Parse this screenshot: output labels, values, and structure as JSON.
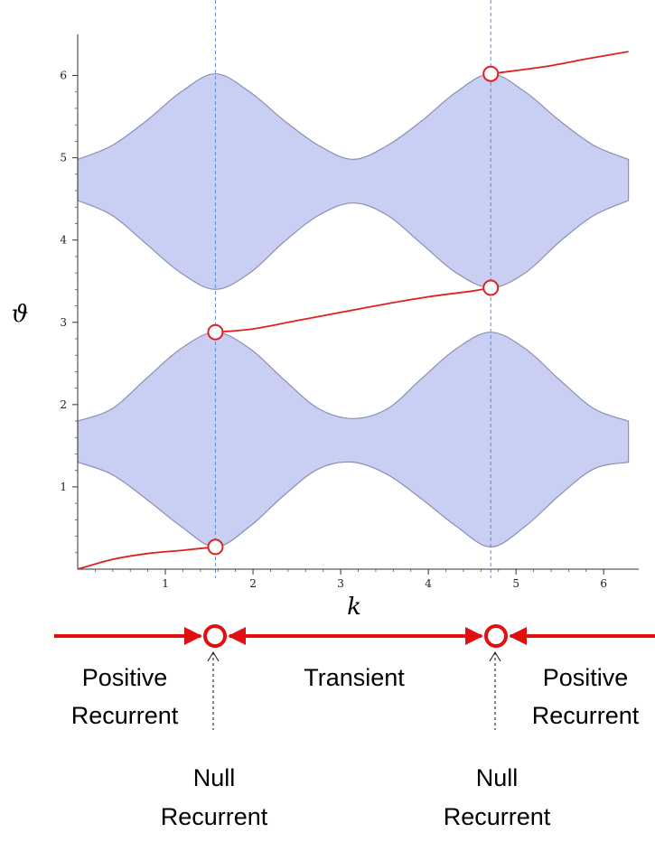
{
  "chart_data": {
    "type": "area",
    "xlabel": "k",
    "ylabel": "ϑ",
    "xlim": [
      0,
      6.4
    ],
    "ylim": [
      0,
      6.5
    ],
    "xticks": [
      "1",
      "2",
      "3",
      "4",
      "5",
      "6"
    ],
    "yticks": [
      "1",
      "2",
      "3",
      "4",
      "5",
      "6"
    ],
    "grid": false,
    "band_color": "#c9cff2",
    "band_edge_color": "#8a8fb5",
    "curve_color": "#e02020",
    "bands": [
      {
        "name": "",
        "x": [
          0,
          0.393,
          0.785,
          1.178,
          1.571,
          1.963,
          2.356,
          2.749,
          3.142,
          3.534,
          3.927,
          4.32,
          4.712,
          5.105,
          5.498,
          5.89,
          6.283
        ],
        "lower": [
          1.3,
          1.15,
          0.85,
          0.52,
          0.27,
          0.52,
          0.9,
          1.22,
          1.3,
          1.15,
          0.85,
          0.52,
          0.27,
          0.52,
          0.9,
          1.22,
          1.3
        ],
        "upper": [
          1.8,
          1.95,
          2.32,
          2.68,
          2.88,
          2.68,
          2.3,
          1.95,
          1.83,
          1.95,
          2.32,
          2.68,
          2.88,
          2.68,
          2.3,
          1.95,
          1.8
        ]
      },
      {
        "name": "",
        "x": [
          0,
          0.393,
          0.785,
          1.178,
          1.571,
          1.963,
          2.356,
          2.749,
          3.142,
          3.534,
          3.927,
          4.32,
          4.712,
          5.105,
          5.498,
          5.89,
          6.283
        ],
        "lower": [
          4.48,
          4.3,
          3.95,
          3.6,
          3.4,
          3.6,
          3.98,
          4.3,
          4.45,
          4.3,
          3.95,
          3.6,
          3.42,
          3.6,
          3.98,
          4.3,
          4.48
        ],
        "upper": [
          4.98,
          5.15,
          5.45,
          5.8,
          6.02,
          5.8,
          5.45,
          5.15,
          4.98,
          5.15,
          5.45,
          5.8,
          6.02,
          5.8,
          5.45,
          5.15,
          4.98
        ]
      }
    ],
    "curves": [
      {
        "x": [
          0,
          0.4,
          0.8,
          1.2,
          1.571
        ],
        "y": [
          0.0,
          0.12,
          0.19,
          0.23,
          0.27
        ]
      },
      {
        "x": [
          1.571,
          2.0,
          2.5,
          3.0,
          3.5,
          4.0,
          4.5,
          4.712
        ],
        "y": [
          2.88,
          2.92,
          3.02,
          3.12,
          3.22,
          3.31,
          3.38,
          3.42
        ]
      },
      {
        "x": [
          4.712,
          5.0,
          5.4,
          5.8,
          6.283
        ],
        "y": [
          6.02,
          6.06,
          6.12,
          6.2,
          6.29
        ]
      }
    ],
    "markers": [
      {
        "x": 1.571,
        "y": 0.27
      },
      {
        "x": 1.571,
        "y": 2.88
      },
      {
        "x": 4.712,
        "y": 3.42
      },
      {
        "x": 4.712,
        "y": 6.02
      }
    ],
    "vlines": [
      1.571,
      4.712
    ]
  },
  "regions": {
    "left": {
      "line1": "Positive",
      "line2": "Recurrent"
    },
    "middle": {
      "line1": "Transient"
    },
    "right": {
      "line1": "Positive",
      "line2": "Recurrent"
    },
    "null_left": {
      "line1": "Null",
      "line2": "Recurrent"
    },
    "null_right": {
      "line1": "Null",
      "line2": "Recurrent"
    }
  }
}
